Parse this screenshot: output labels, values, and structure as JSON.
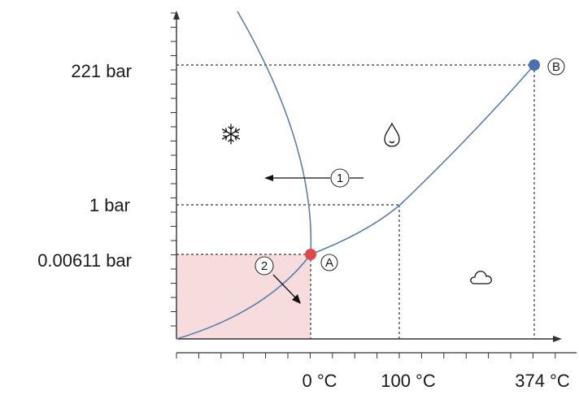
{
  "diagram": {
    "y_labels": {
      "critical": "221 bar",
      "atmospheric": "1 bar",
      "triple": "0.00611 bar"
    },
    "x_labels": {
      "freezing": "0 °C",
      "boiling": "100 °C",
      "critical": "374 °C"
    },
    "points": {
      "triple": {
        "label": "A",
        "color": "#e0474c"
      },
      "critical": {
        "label": "B",
        "color": "#4a72b0"
      }
    },
    "arrows": {
      "melting": "1",
      "sublimation": "2"
    },
    "regions": {
      "solid": "snowflake-icon",
      "liquid": "droplet-icon",
      "gas": "cloud-icon"
    },
    "colors": {
      "curve": "#5b7fad",
      "highlight": "#f6dcdc"
    }
  }
}
